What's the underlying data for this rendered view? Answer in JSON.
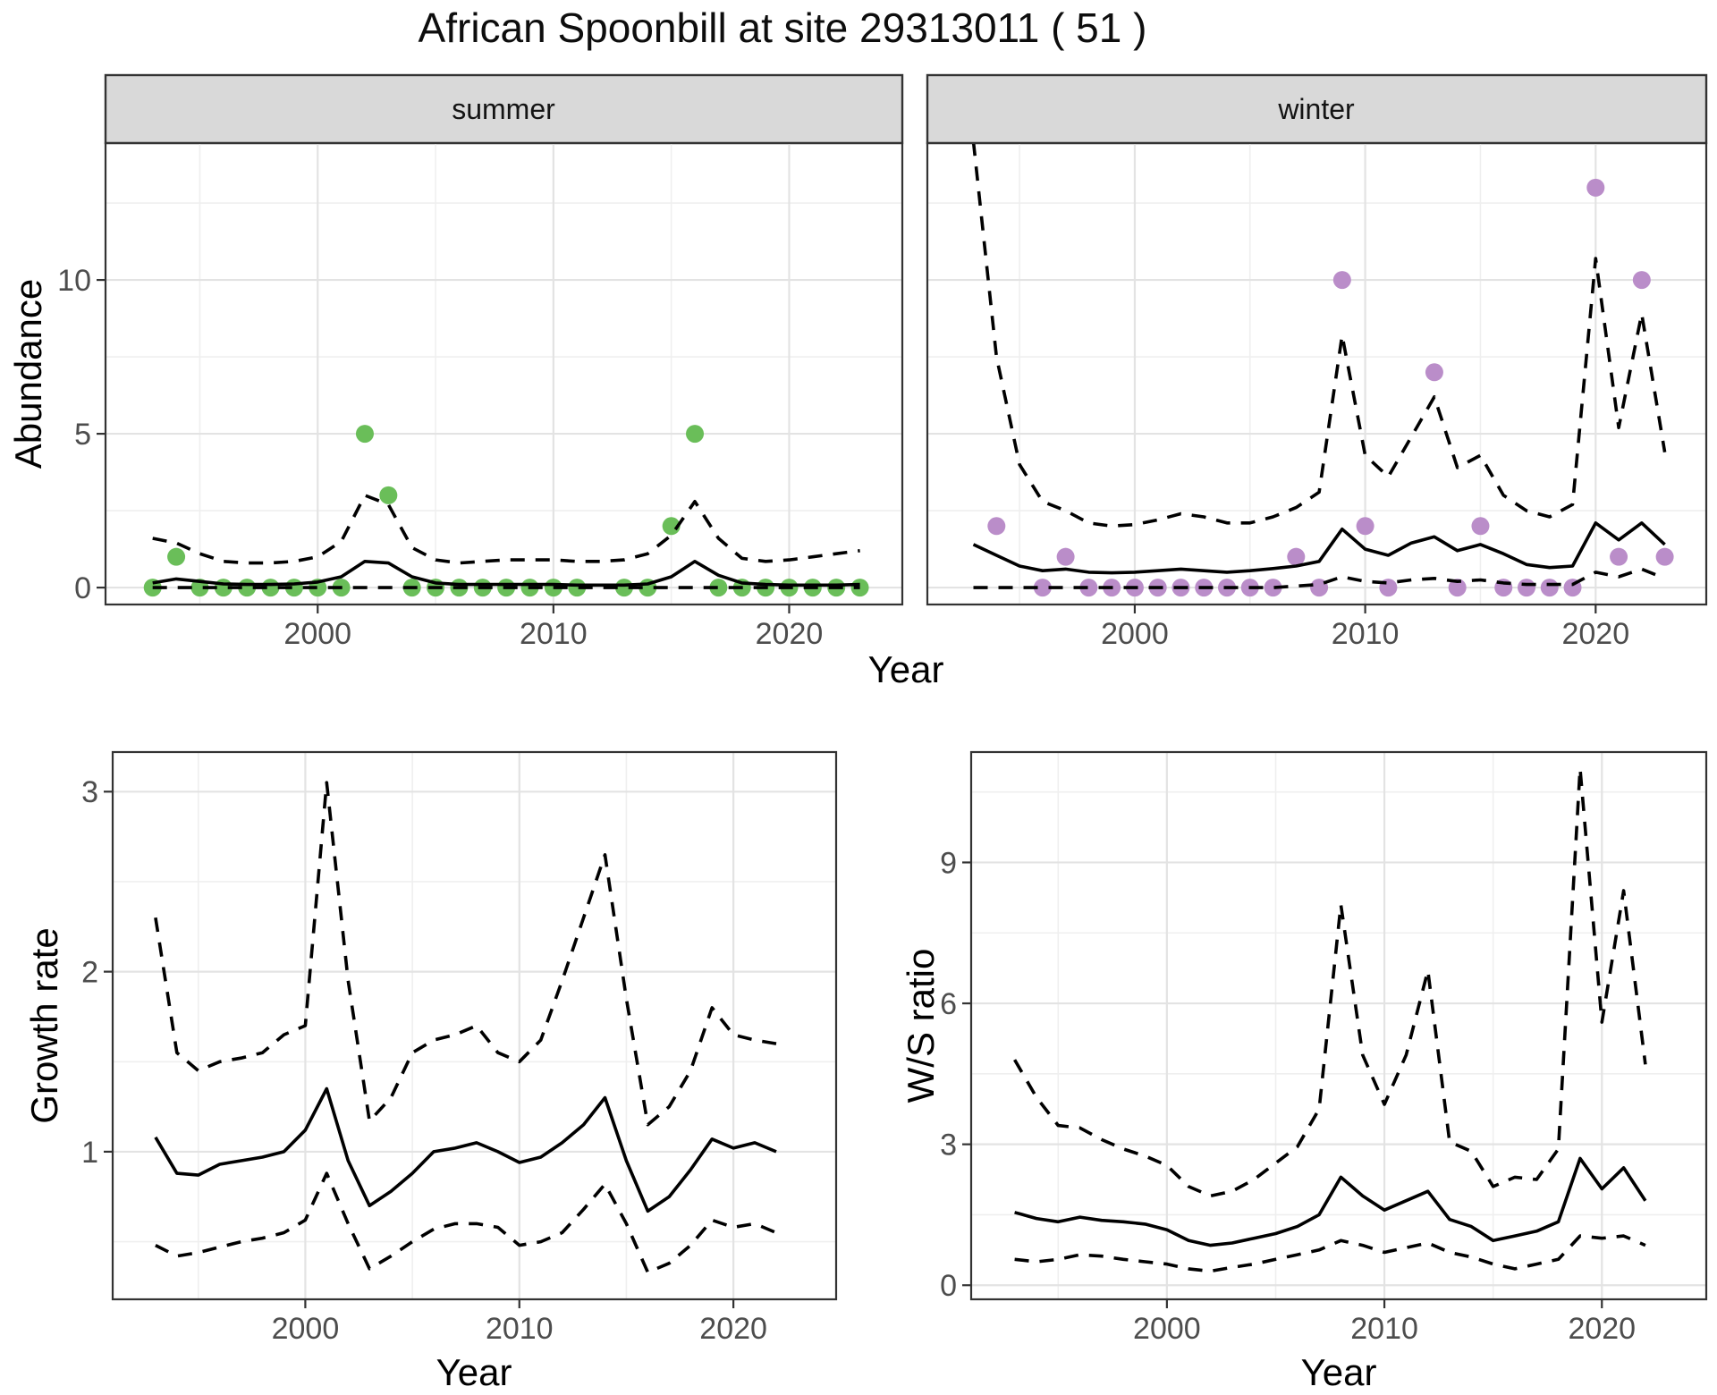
{
  "title": "African Spoonbill at site 29313011 ( 51 )",
  "accent_colors": {
    "summer_points": "#6abe59",
    "winter_points": "#ba8dc9"
  },
  "chart_data": [
    {
      "type": "scatter",
      "panel": "abundance-summer",
      "strip": "summer",
      "xlabel": "Year",
      "ylabel": "Abundance",
      "xlim": [
        1991.0,
        2024.8
      ],
      "ylim": [
        -0.55,
        14.45
      ],
      "x_ticks": [
        2000,
        2010,
        2020
      ],
      "x_minor": [
        1995,
        2005,
        2015
      ],
      "y_ticks": [
        0,
        5,
        10
      ],
      "y_minor": [
        2.5,
        7.5,
        12.5
      ],
      "show_y_labels": true,
      "grid": true,
      "point_color": "#6abe59",
      "points": {
        "x": [
          1993,
          1994,
          1995,
          1996,
          1997,
          1998,
          1999,
          2000,
          2001,
          2002,
          2003,
          2004,
          2005,
          2006,
          2007,
          2008,
          2009,
          2010,
          2011,
          2013,
          2014,
          2015,
          2016,
          2017,
          2018,
          2019,
          2020,
          2021,
          2022,
          2023
        ],
        "y": [
          0,
          1,
          0,
          0,
          0,
          0,
          0,
          0,
          0,
          5,
          3,
          0,
          0,
          0,
          0,
          0,
          0,
          0,
          0,
          0,
          0,
          2,
          5,
          0,
          0,
          0,
          0,
          0,
          0,
          0
        ]
      },
      "line_years": [
        1993,
        1994,
        1995,
        1996,
        1997,
        1998,
        1999,
        2000,
        2001,
        2002,
        2003,
        2004,
        2005,
        2006,
        2007,
        2008,
        2009,
        2010,
        2011,
        2012,
        2013,
        2014,
        2015,
        2016,
        2017,
        2018,
        2019,
        2020,
        2021,
        2022,
        2023
      ],
      "fit": [
        0.15,
        0.28,
        0.2,
        0.12,
        0.1,
        0.1,
        0.12,
        0.18,
        0.35,
        0.85,
        0.8,
        0.35,
        0.15,
        0.1,
        0.1,
        0.1,
        0.1,
        0.1,
        0.08,
        0.08,
        0.08,
        0.12,
        0.35,
        0.85,
        0.4,
        0.15,
        0.1,
        0.08,
        0.08,
        0.08,
        0.1
      ],
      "upper": [
        1.6,
        1.45,
        1.1,
        0.85,
        0.8,
        0.8,
        0.85,
        1.0,
        1.5,
        3.0,
        2.7,
        1.3,
        0.9,
        0.8,
        0.85,
        0.9,
        0.9,
        0.9,
        0.85,
        0.85,
        0.9,
        1.1,
        1.7,
        2.8,
        1.6,
        0.95,
        0.85,
        0.9,
        1.0,
        1.1,
        1.2
      ],
      "lower": [
        0,
        0,
        0,
        0,
        0,
        0,
        0,
        0,
        0,
        0,
        0,
        0,
        0,
        0,
        0,
        0,
        0,
        0,
        0,
        0,
        0,
        0,
        0,
        0,
        0,
        0,
        0,
        0,
        0,
        0,
        0
      ]
    },
    {
      "type": "scatter",
      "panel": "abundance-winter",
      "strip": "winter",
      "xlabel": "Year",
      "ylabel": "Abundance",
      "xlim": [
        1991.0,
        2024.8
      ],
      "ylim": [
        -0.55,
        14.45
      ],
      "x_ticks": [
        2000,
        2010,
        2020
      ],
      "x_minor": [
        1995,
        2005,
        2015
      ],
      "y_ticks": [
        0,
        5,
        10
      ],
      "y_minor": [
        2.5,
        7.5,
        12.5
      ],
      "show_y_labels": false,
      "grid": true,
      "point_color": "#ba8dc9",
      "points": {
        "x": [
          1994,
          1996,
          1997,
          1998,
          1999,
          2000,
          2001,
          2002,
          2003,
          2004,
          2005,
          2006,
          2007,
          2008,
          2009,
          2010,
          2011,
          2013,
          2014,
          2015,
          2016,
          2017,
          2018,
          2019,
          2020,
          2021,
          2022,
          2023
        ],
        "y": [
          2,
          0,
          1,
          0,
          0,
          0,
          0,
          0,
          0,
          0,
          0,
          0,
          1,
          0,
          10,
          2,
          0,
          7,
          0,
          2,
          0,
          0,
          0,
          0,
          13,
          1,
          10,
          1
        ]
      },
      "line_years": [
        1993,
        1994,
        1995,
        1996,
        1997,
        1998,
        1999,
        2000,
        2001,
        2002,
        2003,
        2004,
        2005,
        2006,
        2007,
        2008,
        2009,
        2010,
        2011,
        2012,
        2013,
        2014,
        2015,
        2016,
        2017,
        2018,
        2019,
        2020,
        2021,
        2022,
        2023
      ],
      "fit": [
        1.4,
        1.05,
        0.7,
        0.55,
        0.6,
        0.5,
        0.48,
        0.5,
        0.55,
        0.6,
        0.55,
        0.5,
        0.55,
        0.62,
        0.7,
        0.85,
        1.9,
        1.25,
        1.05,
        1.45,
        1.65,
        1.2,
        1.4,
        1.1,
        0.75,
        0.65,
        0.7,
        2.1,
        1.55,
        2.1,
        1.4
      ],
      "upper": [
        14.5,
        7.5,
        4.0,
        2.8,
        2.5,
        2.1,
        2.0,
        2.05,
        2.2,
        2.4,
        2.3,
        2.1,
        2.1,
        2.3,
        2.6,
        3.1,
        8.2,
        4.3,
        3.6,
        4.9,
        6.2,
        3.9,
        4.3,
        3.0,
        2.5,
        2.3,
        2.7,
        10.7,
        5.2,
        8.9,
        4.4
      ],
      "lower": [
        0,
        0,
        0,
        0,
        0,
        0,
        0,
        0,
        0,
        0,
        0,
        0,
        0,
        0,
        0.05,
        0.1,
        0.35,
        0.2,
        0.15,
        0.25,
        0.3,
        0.2,
        0.25,
        0.15,
        0.1,
        0.1,
        0.1,
        0.5,
        0.35,
        0.6,
        0.3
      ]
    },
    {
      "type": "line",
      "panel": "growth-rate",
      "strip": "",
      "xlabel": "Year",
      "ylabel": "Growth rate",
      "xlim": [
        1991.0,
        2024.8
      ],
      "ylim": [
        0.18,
        3.22
      ],
      "x_ticks": [
        2000,
        2010,
        2020
      ],
      "x_minor": [
        1995,
        2005,
        2015
      ],
      "y_ticks": [
        1,
        2,
        3
      ],
      "y_minor": [
        0.5,
        1.5,
        2.5
      ],
      "show_y_labels": true,
      "grid": true,
      "line_years": [
        1993,
        1994,
        1995,
        1996,
        1997,
        1998,
        1999,
        2000,
        2001,
        2002,
        2003,
        2004,
        2005,
        2006,
        2007,
        2008,
        2009,
        2010,
        2011,
        2012,
        2013,
        2014,
        2015,
        2016,
        2017,
        2018,
        2019,
        2020,
        2021,
        2022
      ],
      "fit": [
        1.08,
        0.88,
        0.87,
        0.93,
        0.95,
        0.97,
        1.0,
        1.12,
        1.35,
        0.95,
        0.7,
        0.78,
        0.88,
        1.0,
        1.02,
        1.05,
        1.0,
        0.94,
        0.97,
        1.05,
        1.15,
        1.3,
        0.95,
        0.67,
        0.75,
        0.9,
        1.07,
        1.02,
        1.05,
        1.0
      ],
      "upper": [
        2.3,
        1.55,
        1.45,
        1.5,
        1.52,
        1.55,
        1.65,
        1.7,
        3.05,
        1.95,
        1.17,
        1.3,
        1.55,
        1.62,
        1.65,
        1.7,
        1.55,
        1.5,
        1.62,
        1.95,
        2.3,
        2.65,
        1.85,
        1.15,
        1.25,
        1.45,
        1.8,
        1.65,
        1.62,
        1.6
      ],
      "lower": [
        0.48,
        0.42,
        0.44,
        0.47,
        0.5,
        0.52,
        0.55,
        0.62,
        0.88,
        0.6,
        0.35,
        0.42,
        0.5,
        0.57,
        0.6,
        0.6,
        0.58,
        0.48,
        0.5,
        0.55,
        0.68,
        0.82,
        0.6,
        0.33,
        0.38,
        0.48,
        0.62,
        0.58,
        0.6,
        0.55
      ]
    },
    {
      "type": "line",
      "panel": "ws-ratio",
      "strip": "",
      "xlabel": "Year",
      "ylabel": "W/S ratio",
      "xlim": [
        1991.0,
        2024.8
      ],
      "ylim": [
        -0.3,
        11.35
      ],
      "x_ticks": [
        2000,
        2010,
        2020
      ],
      "x_minor": [
        1995,
        2005,
        2015
      ],
      "y_ticks": [
        0,
        3,
        6,
        9
      ],
      "y_minor": [
        1.5,
        4.5,
        7.5,
        10.5
      ],
      "show_y_labels": true,
      "grid": true,
      "line_years": [
        1993,
        1994,
        1995,
        1996,
        1997,
        1998,
        1999,
        2000,
        2001,
        2002,
        2003,
        2004,
        2005,
        2006,
        2007,
        2008,
        2009,
        2010,
        2011,
        2012,
        2013,
        2014,
        2015,
        2016,
        2017,
        2018,
        2019,
        2020,
        2021,
        2022
      ],
      "fit": [
        1.55,
        1.42,
        1.35,
        1.45,
        1.38,
        1.35,
        1.3,
        1.18,
        0.95,
        0.85,
        0.9,
        1.0,
        1.1,
        1.25,
        1.5,
        2.3,
        1.9,
        1.6,
        1.8,
        2.0,
        1.4,
        1.25,
        0.95,
        1.05,
        1.15,
        1.35,
        2.7,
        2.05,
        2.5,
        1.8
      ],
      "upper": [
        4.8,
        4.0,
        3.4,
        3.35,
        3.1,
        2.9,
        2.75,
        2.55,
        2.1,
        1.9,
        2.0,
        2.25,
        2.6,
        2.95,
        3.75,
        8.1,
        4.9,
        3.85,
        4.9,
        6.7,
        3.05,
        2.85,
        2.1,
        2.3,
        2.25,
        2.9,
        11.0,
        5.6,
        8.4,
        4.7
      ],
      "lower": [
        0.55,
        0.5,
        0.55,
        0.65,
        0.62,
        0.55,
        0.5,
        0.45,
        0.35,
        0.3,
        0.38,
        0.45,
        0.55,
        0.65,
        0.75,
        0.95,
        0.85,
        0.7,
        0.8,
        0.9,
        0.7,
        0.6,
        0.45,
        0.35,
        0.45,
        0.55,
        1.05,
        1.0,
        1.05,
        0.85
      ]
    }
  ]
}
